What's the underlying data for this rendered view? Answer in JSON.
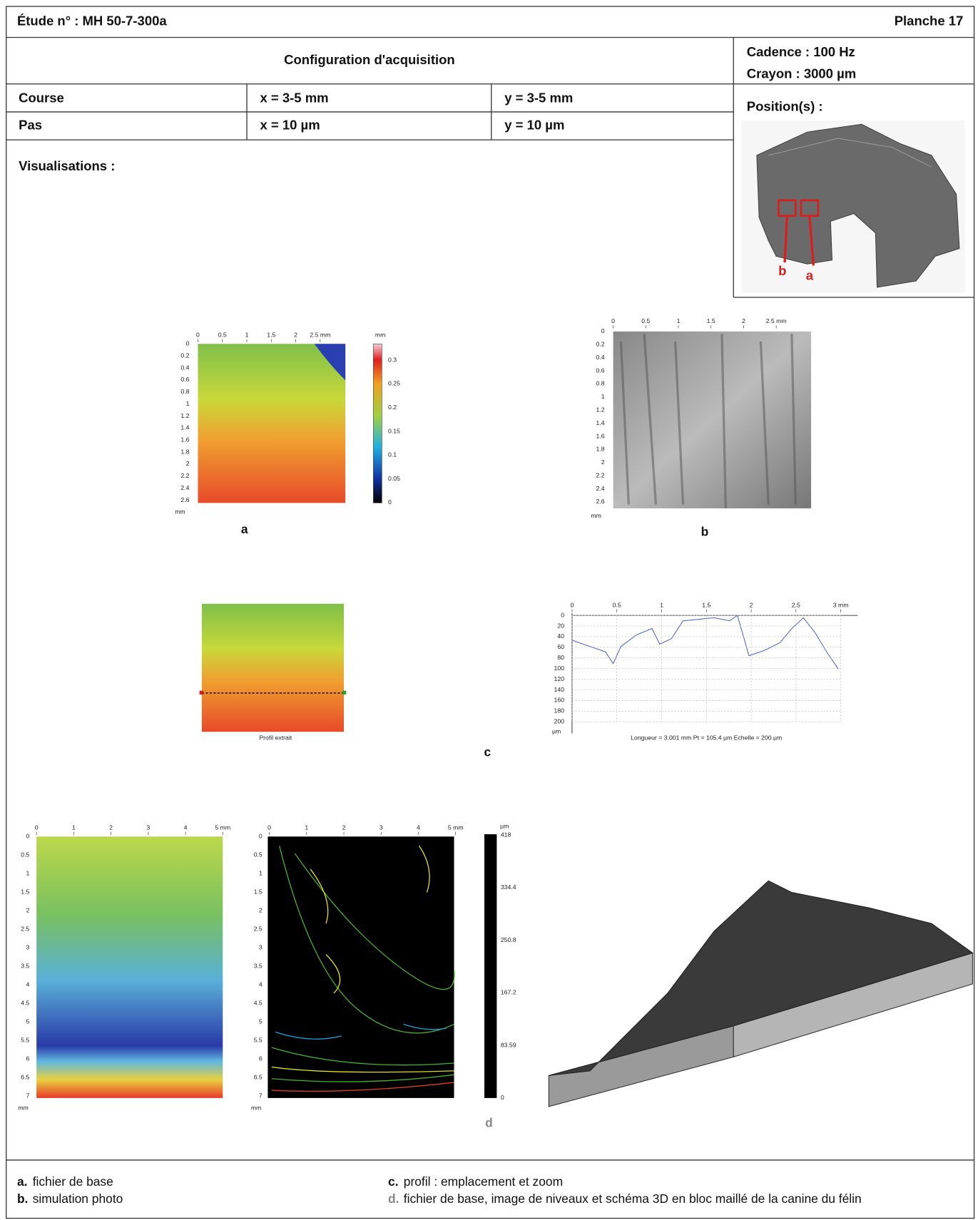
{
  "header": {
    "study": "Étude n° : MH 50-7-300a",
    "plate": "Planche 17"
  },
  "acquisition": {
    "title": "Configuration d'acquisition",
    "rate": "Cadence : 100 Hz",
    "stylus": "Crayon : 3000 µm",
    "rows": [
      [
        "Course",
        "x = 3-5 mm",
        "y = 3-5 mm"
      ],
      [
        "Pas",
        "x = 10 µm",
        "y = 10 µm"
      ]
    ]
  },
  "positions": {
    "title": "Position(s) :",
    "markers": [
      "b",
      "a"
    ]
  },
  "visualisations": {
    "title": "Visualisations :",
    "a": {
      "x_ticks": [
        "0",
        "0.5",
        "1",
        "1.5",
        "2",
        "2.5 mm"
      ],
      "y_ticks": [
        "0",
        "0.2",
        "0.4",
        "0.6",
        "0.8",
        "1",
        "1.2",
        "1.4",
        "1.6",
        "1.8",
        "2",
        "2.2",
        "2.4",
        "2.6"
      ],
      "y_unit": "mm",
      "colorbar_unit": "mm",
      "colorbar_ticks": [
        "0.3",
        "0.25",
        "0.2",
        "0.15",
        "0.1",
        "0.05",
        "0"
      ],
      "caption": "a"
    },
    "b": {
      "x_ticks": [
        "0",
        "0.5",
        "1",
        "1.5",
        "2",
        "2.5 mm"
      ],
      "y_ticks": [
        "0",
        "0.2",
        "0.4",
        "0.6",
        "0.8",
        "1",
        "1.2",
        "1.4",
        "1.6",
        "1.8",
        "2",
        "2.2",
        "2.4",
        "2.6"
      ],
      "y_unit": "mm",
      "caption": "b"
    },
    "c": {
      "map_label": "Profil extrait",
      "x_ticks": [
        "0",
        "0.5",
        "1",
        "1.5",
        "2",
        "2.5",
        "3 mm"
      ],
      "y_ticks": [
        "0",
        "20",
        "40",
        "60",
        "80",
        "100",
        "120",
        "140",
        "160",
        "180",
        "200"
      ],
      "y_unit": "µm",
      "footer": "Longueur = 3.001 mm  Pt = 105.4 µm  Echelle = 200 µm",
      "caption": "c"
    },
    "d": {
      "x_ticks": [
        "0",
        "1",
        "2",
        "3",
        "4",
        "5 mm"
      ],
      "y_ticks": [
        "0",
        "0.5",
        "1",
        "1.5",
        "2",
        "2.5",
        "3",
        "3.5",
        "4",
        "4.5",
        "5",
        "5.5",
        "6",
        "6.5",
        "7"
      ],
      "y_unit": "mm",
      "colorbar_unit": "µm",
      "colorbar_ticks": [
        "418",
        "334.4",
        "250.8",
        "167.2",
        "83.59",
        "0"
      ],
      "caption": "d"
    }
  },
  "legend": [
    {
      "key": "a.",
      "text": "fichier de base"
    },
    {
      "key": "b.",
      "text": "simulation photo"
    },
    {
      "key": "c.",
      "text": "profil : emplacement et zoom"
    },
    {
      "key": "d.",
      "text": "fichier de base, image de niveaux et schéma 3D en bloc maillé de la canine du félin"
    }
  ]
}
